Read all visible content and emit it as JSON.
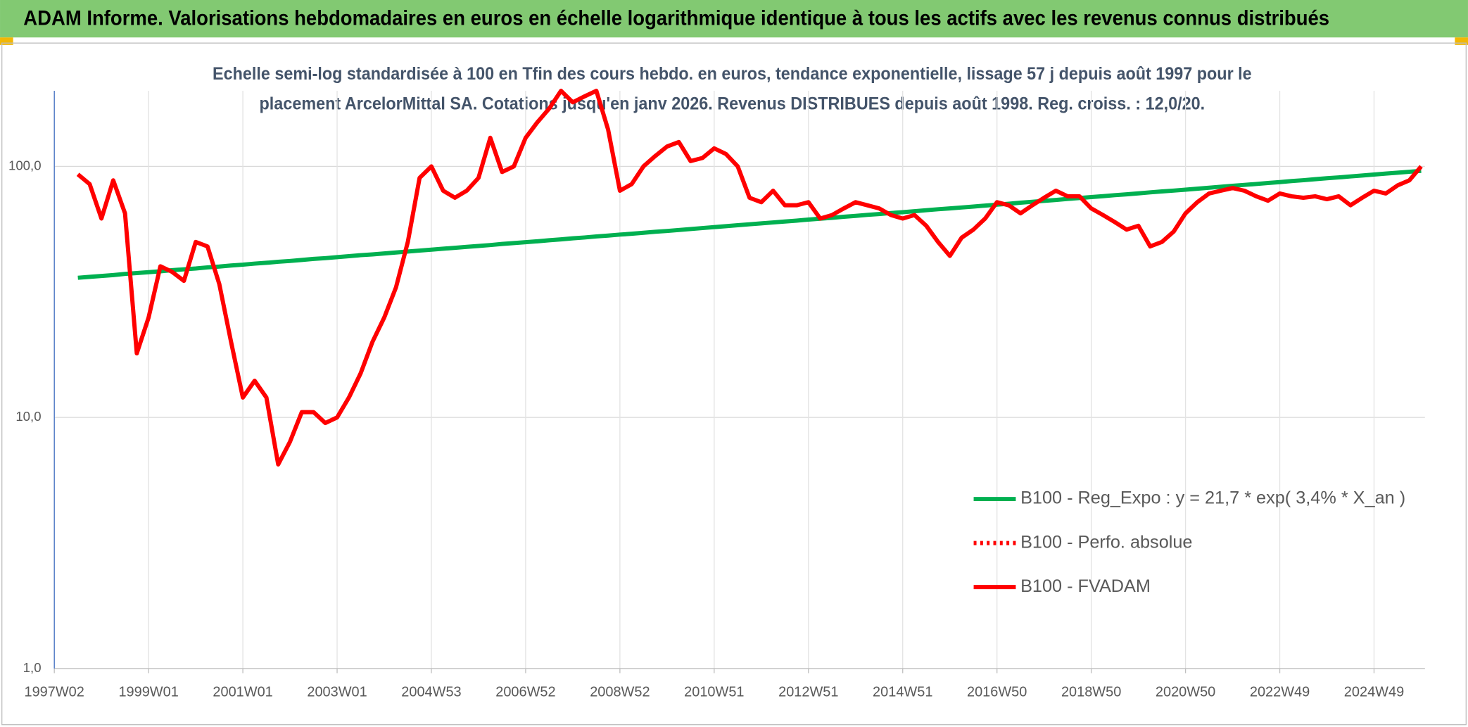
{
  "chart_data": {
    "type": "line",
    "title": "ADAM Informe. Valorisations hebdomadaires en euros en échelle logarithmique identique à tous les actifs avec les revenus connus distribués",
    "subtitle": [
      "Echelle semi-log standardisée à 100 en Tfin des cours hebdo. en euros, tendance exponentielle, lissage 57 j depuis août 1997 pour le",
      "placement ArcelorMittal SA. Cotations jusqu'en janv 2026. Revenus DISTRIBUES depuis août 1998. Reg. croiss. : 12,0/20."
    ],
    "log_scale": true,
    "grid": true,
    "legend": "lower right",
    "ylim": [
      1,
      200
    ],
    "yticks": [
      {
        "value": 1,
        "label": "1,0"
      },
      {
        "value": 10,
        "label": "10,0"
      },
      {
        "value": 100,
        "label": "100,0"
      }
    ],
    "categories": [
      "1997W02",
      null,
      null,
      null,
      null,
      null,
      null,
      null,
      "1999W01",
      null,
      null,
      null,
      null,
      null,
      null,
      null,
      "2001W01",
      null,
      null,
      null,
      null,
      null,
      null,
      null,
      "2003W01",
      null,
      null,
      null,
      null,
      null,
      null,
      null,
      "2004W53",
      null,
      null,
      null,
      null,
      null,
      null,
      null,
      "2006W52",
      null,
      null,
      null,
      null,
      null,
      null,
      null,
      "2008W52",
      null,
      null,
      null,
      null,
      null,
      null,
      null,
      "2010W51",
      null,
      null,
      null,
      null,
      null,
      null,
      null,
      "2012W51",
      null,
      null,
      null,
      null,
      null,
      null,
      null,
      "2014W51",
      null,
      null,
      null,
      null,
      null,
      null,
      null,
      "2016W50",
      null,
      null,
      null,
      null,
      null,
      null,
      null,
      "2018W50",
      null,
      null,
      null,
      null,
      null,
      null,
      null,
      "2020W50",
      null,
      null,
      null,
      null,
      null,
      null,
      null,
      "2022W49",
      null,
      null,
      null,
      null,
      null,
      null,
      null,
      "2024W49",
      null,
      null,
      null,
      null
    ],
    "series": [
      {
        "name": "B100 - Reg_Expo : y = 21,7 * exp( 3,4% *  X_an )",
        "color": "#00b050",
        "style": "solid",
        "values": [
          null,
          null,
          36.0,
          36.3,
          36.6,
          36.9,
          37.3,
          37.6,
          37.9,
          38.2,
          38.6,
          38.9,
          39.2,
          39.6,
          39.9,
          40.3,
          40.6,
          41.0,
          41.3,
          41.7,
          42.0,
          42.4,
          42.8,
          43.1,
          43.5,
          43.9,
          44.3,
          44.6,
          45.0,
          45.4,
          45.8,
          46.2,
          46.6,
          47.0,
          47.4,
          47.8,
          48.2,
          48.6,
          49.1,
          49.5,
          49.9,
          50.3,
          50.8,
          51.2,
          51.7,
          52.1,
          52.6,
          53.0,
          53.5,
          53.9,
          54.4,
          54.9,
          55.3,
          55.8,
          56.3,
          56.8,
          57.3,
          57.8,
          58.3,
          58.8,
          59.3,
          59.8,
          60.3,
          60.8,
          61.4,
          61.9,
          62.4,
          63.0,
          63.5,
          64.1,
          64.6,
          65.2,
          65.7,
          66.3,
          66.9,
          67.5,
          68.0,
          68.6,
          69.2,
          69.8,
          70.4,
          71.0,
          71.7,
          72.3,
          72.9,
          73.5,
          74.2,
          74.8,
          75.5,
          76.1,
          76.8,
          77.4,
          78.1,
          78.8,
          79.5,
          80.1,
          80.8,
          81.5,
          82.2,
          83.0,
          83.7,
          84.4,
          85.1,
          85.9,
          86.6,
          87.4,
          88.1,
          88.9,
          89.7,
          90.4,
          91.2,
          92.0,
          92.8,
          93.6,
          94.4,
          95.2,
          96.0
        ]
      },
      {
        "name": "B100 - Perfo. absolue",
        "color": "#ff0000",
        "style": "dotted",
        "values": [
          null,
          null,
          null,
          null,
          null,
          null,
          null,
          null,
          null,
          null,
          null,
          null,
          null,
          null,
          null,
          null,
          null,
          null,
          null,
          null,
          null,
          null,
          null,
          null,
          null,
          null,
          null,
          null,
          null,
          null,
          null,
          null,
          null,
          null,
          null,
          null,
          null,
          null,
          null,
          null,
          null,
          null,
          null,
          null,
          null,
          null,
          null,
          null,
          null,
          null,
          null,
          null,
          null,
          null,
          null,
          null,
          null,
          null,
          null,
          null,
          null,
          null,
          null,
          null,
          null,
          null,
          null,
          null,
          null,
          null,
          null,
          null,
          null,
          null,
          null,
          null,
          null,
          null,
          null,
          null,
          null,
          null,
          null,
          null,
          null,
          null,
          null,
          null,
          null,
          null,
          null,
          null,
          null,
          null,
          null,
          null,
          null,
          null,
          null,
          null,
          null,
          null,
          null,
          null,
          null,
          null,
          null,
          null,
          null,
          null,
          null,
          null,
          null,
          null,
          null,
          null,
          null
        ]
      },
      {
        "name": "B100 - FVADAM",
        "color": "#ff0000",
        "style": "solid",
        "values": [
          null,
          null,
          93,
          85,
          62,
          88,
          65,
          18,
          25,
          40,
          38,
          35,
          50,
          48,
          34,
          20,
          12,
          14,
          12,
          6.5,
          8,
          10.5,
          10.5,
          9.5,
          10,
          12,
          15,
          20,
          25,
          33,
          50,
          90,
          100,
          80,
          75,
          80,
          90,
          130,
          95,
          100,
          130,
          150,
          170,
          200,
          180,
          190,
          200,
          140,
          80,
          85,
          100,
          110,
          120,
          125,
          105,
          108,
          118,
          112,
          100,
          75,
          72,
          80,
          70,
          70,
          72,
          62,
          64,
          68,
          72,
          70,
          68,
          64,
          62,
          64,
          58,
          50,
          44,
          52,
          56,
          62,
          72,
          70,
          65,
          70,
          75,
          80,
          76,
          76,
          68,
          64,
          60,
          56,
          58,
          48,
          50,
          55,
          65,
          72,
          78,
          80,
          82,
          80,
          76,
          73,
          78,
          76,
          75,
          76,
          74,
          76,
          70,
          75,
          80,
          78,
          84,
          88,
          100
        ]
      }
    ]
  }
}
